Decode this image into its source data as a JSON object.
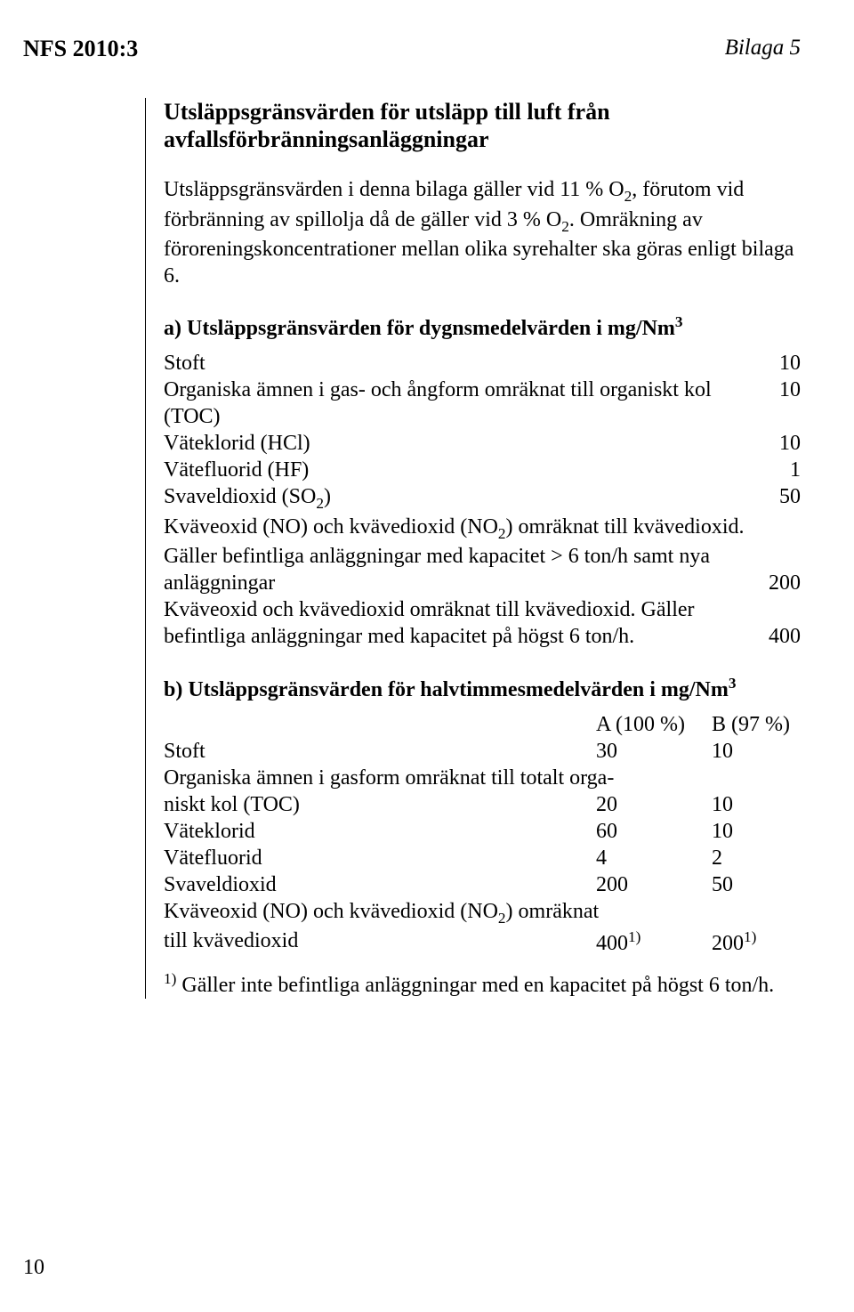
{
  "header": {
    "left": "NFS 2010:3",
    "right": "Bilaga 5"
  },
  "title": "Utsläppsgränsvärden för utsläpp till luft från avfallsförbränningsanläggningar",
  "intro": {
    "part1": "Utsläppsgränsvärden i denna bilaga gäller vid 11 % O",
    "sub1": "2",
    "part2": ", förutom vid förbränning av spillolja då de gäller vid 3 % O",
    "sub2": "2",
    "part3": ". Omräkning av föroreningskoncentrationer mellan olika syrehalter ska göras enligt bilaga 6."
  },
  "sectionA": {
    "heading_pre": "a) Utsläppsgränsvärden för dygnsmedelvärden i mg/Nm",
    "heading_sup": "3",
    "rows": [
      {
        "label": "Stoft",
        "value": "10"
      },
      {
        "label": "Organiska ämnen i gas- och ångform omräknat till organiskt kol (TOC)",
        "value": "10"
      },
      {
        "label": "Väteklorid (HCl)",
        "value": "10"
      },
      {
        "label": "Vätefluorid (HF)",
        "value": "1"
      }
    ],
    "so2": {
      "label_pre": "Svaveldioxid (SO",
      "label_sub": "2",
      "label_post": ")",
      "value": "50"
    },
    "nox1": {
      "line1_pre": "Kväveoxid (NO) och kvävedioxid (NO",
      "line1_sub": "2",
      "line1_post": ") omräknat till kvävedioxid.",
      "line2": "Gäller befintliga anläggningar med kapacitet > 6 ton/h samt nya",
      "line3_label": "anläggningar",
      "line3_value": "200"
    },
    "nox2": {
      "line1": "Kväveoxid och kvävedioxid omräknat till kvävedioxid. Gäller",
      "line2_label": "befintliga anläggningar med kapacitet på högst 6 ton/h.",
      "line2_value": "400"
    }
  },
  "sectionB": {
    "heading_pre": "b) Utsläppsgränsvärden för halvtimmesmedelvärden i mg/Nm",
    "heading_sup": "3",
    "col_a": "A (100 %)",
    "col_b": "B (97 %)",
    "rows": [
      {
        "label": "Stoft",
        "a": "30",
        "b": "10"
      }
    ],
    "toc": {
      "line1": "Organiska ämnen i gasform omräknat till totalt orga-",
      "line2_label": "niskt kol (TOC)",
      "line2_a": "20",
      "line2_b": "10"
    },
    "rows2": [
      {
        "label": "Väteklorid",
        "a": "60",
        "b": "10"
      },
      {
        "label": "Vätefluorid",
        "a": "4",
        "b": "2"
      },
      {
        "label": "Svaveldioxid",
        "a": "200",
        "b": "50"
      }
    ],
    "nox": {
      "line1_pre": "Kväveoxid (NO) och kvävedioxid (NO",
      "line1_sub": "2",
      "line1_post": ") omräknat",
      "line2_label": "till kvävedioxid",
      "line2_a": "400",
      "line2_a_sup": "1)",
      "line2_b": "200",
      "line2_b_sup": "1)"
    }
  },
  "footnote": {
    "sup": "1)",
    "text": " Gäller inte befintliga anläggningar med en kapacitet på högst 6 ton/h."
  },
  "page_number": "10",
  "colors": {
    "text": "#000000",
    "background": "#ffffff",
    "border": "#000000"
  },
  "fonts": {
    "family": "Times New Roman",
    "body_size_pt": 18,
    "header_bold_size_pt": 20
  }
}
